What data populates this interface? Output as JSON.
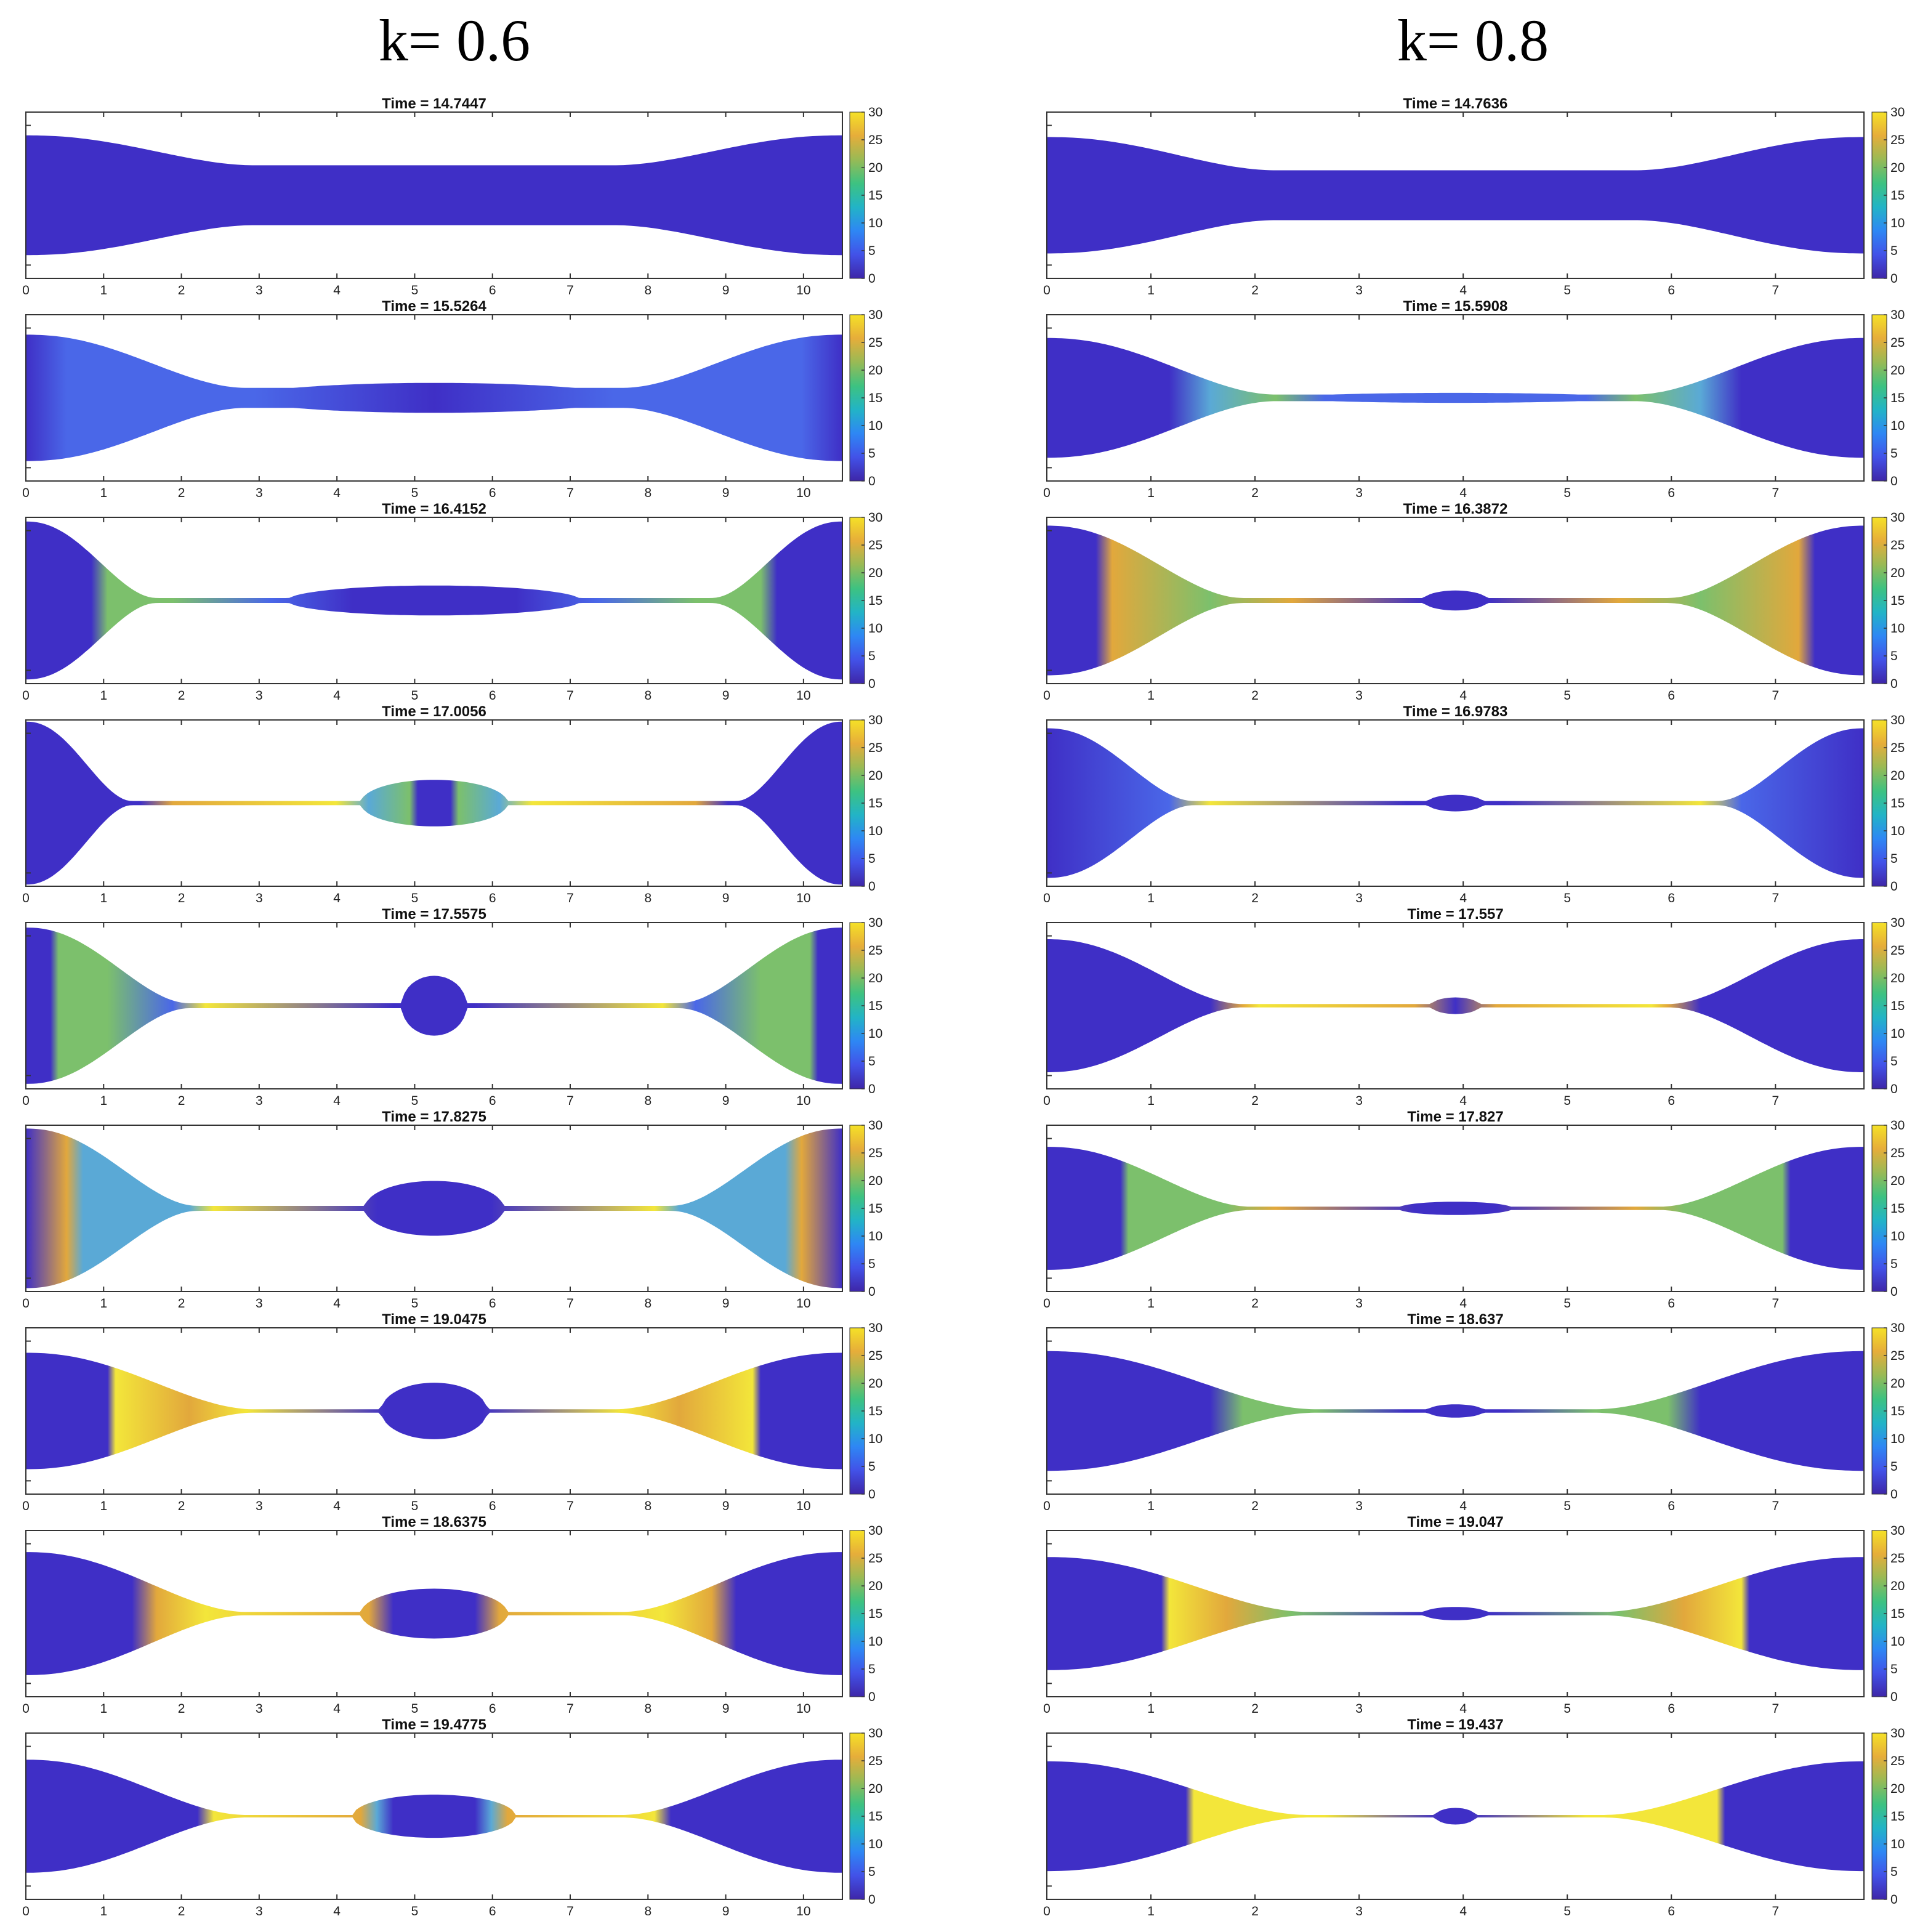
{
  "columns": [
    {
      "title": "k= 0.6",
      "xmax": 10.5,
      "xticks": [
        0,
        1,
        2,
        3,
        4,
        5,
        6,
        7,
        8,
        9,
        10
      ],
      "panels": [
        {
          "time_label": "Time = 14.7447"
        },
        {
          "time_label": "Time = 15.5264"
        },
        {
          "time_label": "Time = 16.4152"
        },
        {
          "time_label": "Time = 17.0056"
        },
        {
          "time_label": "Time = 17.5575"
        },
        {
          "time_label": "Time = 17.8275"
        },
        {
          "time_label": "Time = 19.0475"
        },
        {
          "time_label": "Time = 18.6375"
        },
        {
          "time_label": "Time = 19.4775"
        }
      ]
    },
    {
      "title": "k= 0.8",
      "xmax": 7.85,
      "xticks": [
        0,
        1,
        2,
        3,
        4,
        5,
        6,
        7
      ],
      "panels": [
        {
          "time_label": "Time = 14.7636"
        },
        {
          "time_label": "Time = 15.5908"
        },
        {
          "time_label": "Time = 16.3872"
        },
        {
          "time_label": "Time = 16.9783"
        },
        {
          "time_label": "Time = 17.557"
        },
        {
          "time_label": "Time = 17.827"
        },
        {
          "time_label": "Time = 18.637"
        },
        {
          "time_label": "Time = 19.047"
        },
        {
          "time_label": "Time = 19.437"
        }
      ]
    }
  ],
  "colorbar": {
    "ticks": [
      "0",
      "5",
      "10",
      "15",
      "20",
      "25",
      "30"
    ],
    "colors": [
      "#3e26a8",
      "#4252e8",
      "#2e87f4",
      "#22b4c6",
      "#3dc281",
      "#98ba55",
      "#e6ad3a",
      "#f5e127"
    ]
  },
  "fill_colors": {
    "deep_blue": "#3f2fc6",
    "mid_blue": "#4a67e8",
    "cyan": "#5aa9d6",
    "green": "#7cc06c",
    "orange": "#e2a83c",
    "yellow": "#f3e63a"
  }
}
